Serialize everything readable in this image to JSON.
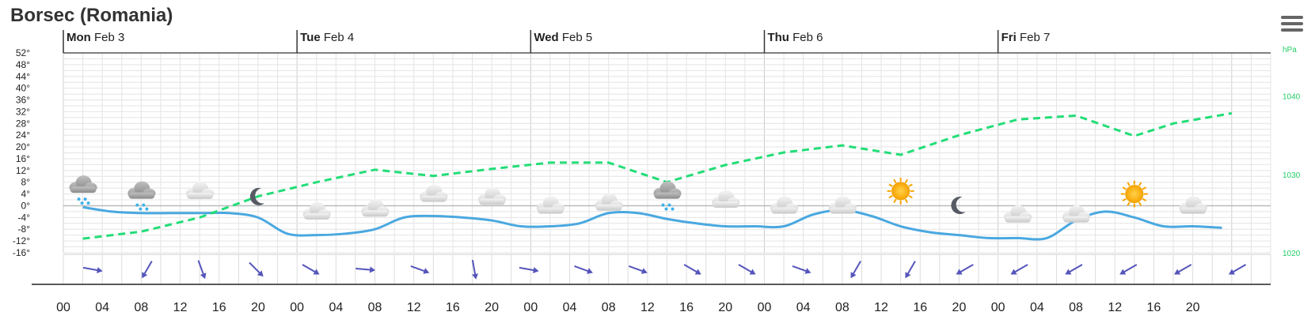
{
  "header": {
    "title": "Borsec (Romania)"
  },
  "colors": {
    "temperature": "#4aa8e0",
    "pressure": "#22dd77",
    "wind": "#5555bb",
    "grid": "#e4e4e4"
  },
  "chart_data": {
    "type": "line",
    "days": [
      {
        "name": "Mon",
        "date": "Feb 3"
      },
      {
        "name": "Tue",
        "date": "Feb 4"
      },
      {
        "name": "Wed",
        "date": "Feb 5"
      },
      {
        "name": "Thu",
        "date": "Feb 6"
      },
      {
        "name": "Fri",
        "date": "Feb 7"
      }
    ],
    "hour_labels": [
      "00",
      "04",
      "08",
      "12",
      "16",
      "20",
      "00",
      "04",
      "08",
      "12",
      "16",
      "20",
      "00",
      "04",
      "08",
      "12",
      "16",
      "20",
      "00",
      "04",
      "08",
      "12",
      "16",
      "20",
      "00",
      "04",
      "08",
      "12",
      "16",
      "20"
    ],
    "y_left": {
      "ticks": [
        "52°",
        "48°",
        "44°",
        "40°",
        "36°",
        "32°",
        "28°",
        "24°",
        "20°",
        "16°",
        "12°",
        "8°",
        "4°",
        "0°",
        "-4°",
        "-8°",
        "-12°",
        "-16°"
      ],
      "range": [
        -16,
        52
      ]
    },
    "y_right": {
      "unit": "hPa",
      "ticks": [
        "1040",
        "1030",
        "1020"
      ],
      "range": [
        1020,
        1045.5
      ]
    },
    "series": [
      {
        "name": "Temperature",
        "kind": "temperature",
        "x_hours": [
          2,
          5,
          8,
          11,
          14,
          17,
          20,
          23,
          26,
          29,
          32,
          35,
          38,
          41,
          44,
          47,
          50,
          53,
          56,
          59,
          62,
          65,
          68,
          71,
          74,
          77,
          80,
          83,
          86,
          89,
          92,
          95,
          98,
          101,
          104,
          107,
          110,
          113,
          116,
          119
        ],
        "values": [
          -0.5,
          -2,
          -2.5,
          -2.5,
          -2.5,
          -2.5,
          -4,
          -9.5,
          -10,
          -9.5,
          -8,
          -4,
          -3.5,
          -4,
          -5,
          -7,
          -7,
          -6,
          -2.5,
          -2.5,
          -4.5,
          -6,
          -7,
          -7,
          -7,
          -3,
          -1.5,
          -3.5,
          -7,
          -9,
          -10,
          -11,
          -11,
          -11,
          -5,
          -2,
          -4,
          -7,
          -7,
          -7.5
        ]
      },
      {
        "name": "Pressure",
        "kind": "pressure",
        "x_hours": [
          2,
          8,
          14,
          20,
          26,
          32,
          38,
          44,
          50,
          56,
          62,
          68,
          74,
          80,
          86,
          92,
          98,
          104,
          110,
          114,
          120
        ],
        "values": [
          1021.8,
          1022.7,
          1024.5,
          1027.2,
          1029.0,
          1030.6,
          1029.8,
          1030.7,
          1031.5,
          1031.5,
          1029.0,
          1031.2,
          1032.8,
          1033.7,
          1032.5,
          1035.0,
          1037.0,
          1037.5,
          1034.9,
          1036.5,
          1037.8
        ]
      }
    ],
    "weather_icons": [
      {
        "hour": 2,
        "icon": "snow-cloud-icon",
        "temp": 6
      },
      {
        "hour": 8,
        "icon": "snow-cloud-icon",
        "temp": 4
      },
      {
        "hour": 14,
        "icon": "cloud-icon",
        "temp": 5
      },
      {
        "hour": 20,
        "icon": "moon-icon",
        "temp": 3
      },
      {
        "hour": 26,
        "icon": "cloud-icon",
        "temp": -2
      },
      {
        "hour": 32,
        "icon": "cloud-icon",
        "temp": -1
      },
      {
        "hour": 38,
        "icon": "cloud-icon",
        "temp": 4
      },
      {
        "hour": 44,
        "icon": "cloud-icon",
        "temp": 3
      },
      {
        "hour": 50,
        "icon": "cloud-icon",
        "temp": 0
      },
      {
        "hour": 56,
        "icon": "cloud-icon",
        "temp": 1
      },
      {
        "hour": 62,
        "icon": "snow-cloud-icon",
        "temp": 4
      },
      {
        "hour": 68,
        "icon": "cloud-icon",
        "temp": 2
      },
      {
        "hour": 74,
        "icon": "cloud-icon",
        "temp": 0
      },
      {
        "hour": 80,
        "icon": "cloud-icon",
        "temp": 0
      },
      {
        "hour": 86,
        "icon": "sun-icon",
        "temp": 5
      },
      {
        "hour": 92,
        "icon": "moon-icon",
        "temp": 0
      },
      {
        "hour": 98,
        "icon": "cloud-icon",
        "temp": -3
      },
      {
        "hour": 104,
        "icon": "cloud-icon",
        "temp": -3
      },
      {
        "hour": 110,
        "icon": "sun-icon",
        "temp": 4
      },
      {
        "hour": 116,
        "icon": "cloud-icon",
        "temp": 0
      }
    ],
    "wind_directions_deg": [
      280,
      30,
      340,
      315,
      300,
      275,
      290,
      350,
      280,
      290,
      290,
      300,
      300,
      290,
      30,
      30,
      60,
      60,
      60,
      60,
      60,
      60
    ],
    "grid": true,
    "legend": "none"
  },
  "menu": {
    "icon": "hamburger-menu-icon"
  }
}
